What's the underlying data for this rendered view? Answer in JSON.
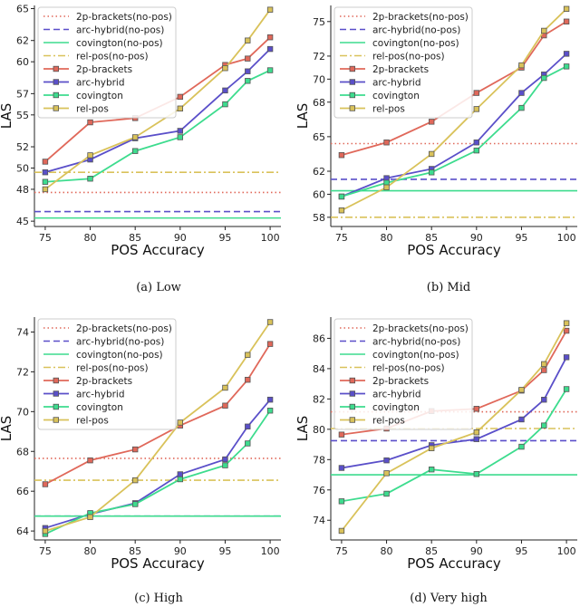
{
  "colors": {
    "2p-brackets": "#e0685a",
    "arc-hybrid": "#5a4fc9",
    "covington": "#3ddc8e",
    "rel-pos": "#d9c25a"
  },
  "chart_data": [
    {
      "type": "line",
      "caption": "(a) Low",
      "xlabel": "POS Accuracy",
      "ylabel": "LAS",
      "x": [
        75,
        80,
        85,
        90,
        95,
        97.5,
        100
      ],
      "xticks": [
        75,
        80,
        85,
        90,
        95,
        100
      ],
      "yticks": [
        45,
        48,
        50,
        52,
        55,
        57,
        60,
        62,
        65
      ],
      "ytick_labels": [
        "45",
        "48",
        "50",
        "52",
        "55",
        "57",
        "60",
        "62",
        "65"
      ],
      "ylim": [
        44.5,
        65.3
      ],
      "baselines": [
        {
          "name": "2p-brackets(no-pos)",
          "value": 47.7,
          "color_key": "2p-brackets",
          "dash": "dot"
        },
        {
          "name": "arc-hybrid(no-pos)",
          "value": 45.9,
          "color_key": "arc-hybrid",
          "dash": "dash"
        },
        {
          "name": "covington(no-pos)",
          "value": 45.3,
          "color_key": "covington",
          "dash": "solid"
        },
        {
          "name": "rel-pos(no-pos)",
          "value": 49.6,
          "color_key": "rel-pos",
          "dash": "dashdot"
        }
      ],
      "series": [
        {
          "name": "2p-brackets",
          "color_key": "2p-brackets",
          "values": [
            50.6,
            54.3,
            54.7,
            56.7,
            59.7,
            60.3,
            62.3
          ]
        },
        {
          "name": "arc-hybrid",
          "color_key": "arc-hybrid",
          "values": [
            49.6,
            50.8,
            52.8,
            53.5,
            57.3,
            59.1,
            61.2
          ]
        },
        {
          "name": "covington",
          "color_key": "covington",
          "values": [
            48.7,
            49.0,
            51.6,
            52.9,
            56.0,
            58.2,
            59.2
          ]
        },
        {
          "name": "rel-pos",
          "color_key": "rel-pos",
          "values": [
            48.0,
            51.2,
            52.9,
            55.6,
            59.4,
            62.0,
            64.9
          ]
        }
      ]
    },
    {
      "type": "line",
      "caption": "(b) Mid",
      "xlabel": "POS Accuracy",
      "ylabel": "LAS",
      "x": [
        75,
        80,
        85,
        90,
        95,
        97.5,
        100
      ],
      "xticks": [
        75,
        80,
        85,
        90,
        95,
        100
      ],
      "yticks": [
        58,
        60,
        62,
        65,
        68,
        70,
        72,
        75
      ],
      "ytick_labels": [
        "58",
        "60",
        "62",
        "65",
        "68",
        "70",
        "72",
        "75"
      ],
      "ylim": [
        57.2,
        76.4
      ],
      "baselines": [
        {
          "name": "2p-brackets(no-pos)",
          "value": 64.4,
          "color_key": "2p-brackets",
          "dash": "dot"
        },
        {
          "name": "arc-hybrid(no-pos)",
          "value": 61.3,
          "color_key": "arc-hybrid",
          "dash": "dash"
        },
        {
          "name": "covington(no-pos)",
          "value": 60.3,
          "color_key": "covington",
          "dash": "solid"
        },
        {
          "name": "rel-pos(no-pos)",
          "value": 58.0,
          "color_key": "rel-pos",
          "dash": "dashdot"
        }
      ],
      "series": [
        {
          "name": "2p-brackets",
          "color_key": "2p-brackets",
          "values": [
            63.4,
            64.5,
            66.3,
            68.8,
            71.0,
            73.8,
            75.0
          ]
        },
        {
          "name": "arc-hybrid",
          "color_key": "arc-hybrid",
          "values": [
            59.8,
            61.4,
            62.2,
            64.5,
            68.8,
            70.4,
            72.2
          ]
        },
        {
          "name": "covington",
          "color_key": "covington",
          "values": [
            59.8,
            61.0,
            61.9,
            63.8,
            67.5,
            70.1,
            71.1
          ]
        },
        {
          "name": "rel-pos",
          "color_key": "rel-pos",
          "values": [
            58.6,
            60.6,
            63.5,
            67.4,
            71.2,
            74.2,
            76.1
          ]
        }
      ]
    },
    {
      "type": "line",
      "caption": "(c) High",
      "xlabel": "POS Accuracy",
      "ylabel": "LAS",
      "x": [
        75,
        80,
        85,
        90,
        95,
        97.5,
        100
      ],
      "xticks": [
        75,
        80,
        85,
        90,
        95,
        100
      ],
      "yticks": [
        64,
        66,
        68,
        70,
        72,
        74
      ],
      "ytick_labels": [
        "64",
        "66",
        "68",
        "70",
        "72",
        "74"
      ],
      "ylim": [
        63.55,
        74.75
      ],
      "baselines": [
        {
          "name": "2p-brackets(no-pos)",
          "value": 67.65,
          "color_key": "2p-brackets",
          "dash": "dot"
        },
        {
          "name": "arc-hybrid(no-pos)",
          "value": 64.75,
          "color_key": "arc-hybrid",
          "dash": "dash"
        },
        {
          "name": "covington(no-pos)",
          "value": 64.75,
          "color_key": "covington",
          "dash": "solid"
        },
        {
          "name": "rel-pos(no-pos)",
          "value": 66.55,
          "color_key": "rel-pos",
          "dash": "dashdot"
        }
      ],
      "series": [
        {
          "name": "2p-brackets",
          "color_key": "2p-brackets",
          "values": [
            66.35,
            67.55,
            68.1,
            69.3,
            70.3,
            71.6,
            73.4
          ]
        },
        {
          "name": "arc-hybrid",
          "color_key": "arc-hybrid",
          "values": [
            64.15,
            64.85,
            65.4,
            66.85,
            67.6,
            69.25,
            70.6
          ]
        },
        {
          "name": "covington",
          "color_key": "covington",
          "values": [
            63.85,
            64.9,
            65.35,
            66.6,
            67.3,
            68.4,
            70.05
          ]
        },
        {
          "name": "rel-pos",
          "color_key": "rel-pos",
          "values": [
            64.0,
            64.7,
            66.55,
            69.45,
            71.2,
            72.85,
            74.5
          ]
        }
      ]
    },
    {
      "type": "line",
      "caption": "(d) Very high",
      "xlabel": "POS Accuracy",
      "ylabel": "LAS",
      "x": [
        75,
        80,
        85,
        90,
        95,
        97.5,
        100
      ],
      "xticks": [
        75,
        80,
        85,
        90,
        95,
        100
      ],
      "yticks": [
        74,
        76,
        78,
        80,
        82,
        84,
        86
      ],
      "ytick_labels": [
        "74",
        "76",
        "78",
        "80",
        "82",
        "84",
        "86"
      ],
      "ylim": [
        72.7,
        87.4
      ],
      "baselines": [
        {
          "name": "2p-brackets(no-pos)",
          "value": 81.15,
          "color_key": "2p-brackets",
          "dash": "dot"
        },
        {
          "name": "arc-hybrid(no-pos)",
          "value": 79.25,
          "color_key": "arc-hybrid",
          "dash": "dash"
        },
        {
          "name": "covington(no-pos)",
          "value": 77.0,
          "color_key": "covington",
          "dash": "solid"
        },
        {
          "name": "rel-pos(no-pos)",
          "value": 80.05,
          "color_key": "rel-pos",
          "dash": "dashdot"
        }
      ],
      "series": [
        {
          "name": "2p-brackets",
          "color_key": "2p-brackets",
          "values": [
            79.65,
            80.05,
            81.2,
            81.35,
            82.55,
            83.9,
            86.5
          ]
        },
        {
          "name": "arc-hybrid",
          "color_key": "arc-hybrid",
          "values": [
            77.45,
            77.95,
            78.95,
            79.35,
            80.65,
            81.95,
            84.75
          ]
        },
        {
          "name": "covington",
          "color_key": "covington",
          "values": [
            75.25,
            75.75,
            77.35,
            77.05,
            78.85,
            80.25,
            82.65
          ]
        },
        {
          "name": "rel-pos",
          "color_key": "rel-pos",
          "values": [
            73.3,
            77.1,
            78.75,
            79.8,
            82.6,
            84.3,
            87.0
          ]
        }
      ]
    }
  ]
}
